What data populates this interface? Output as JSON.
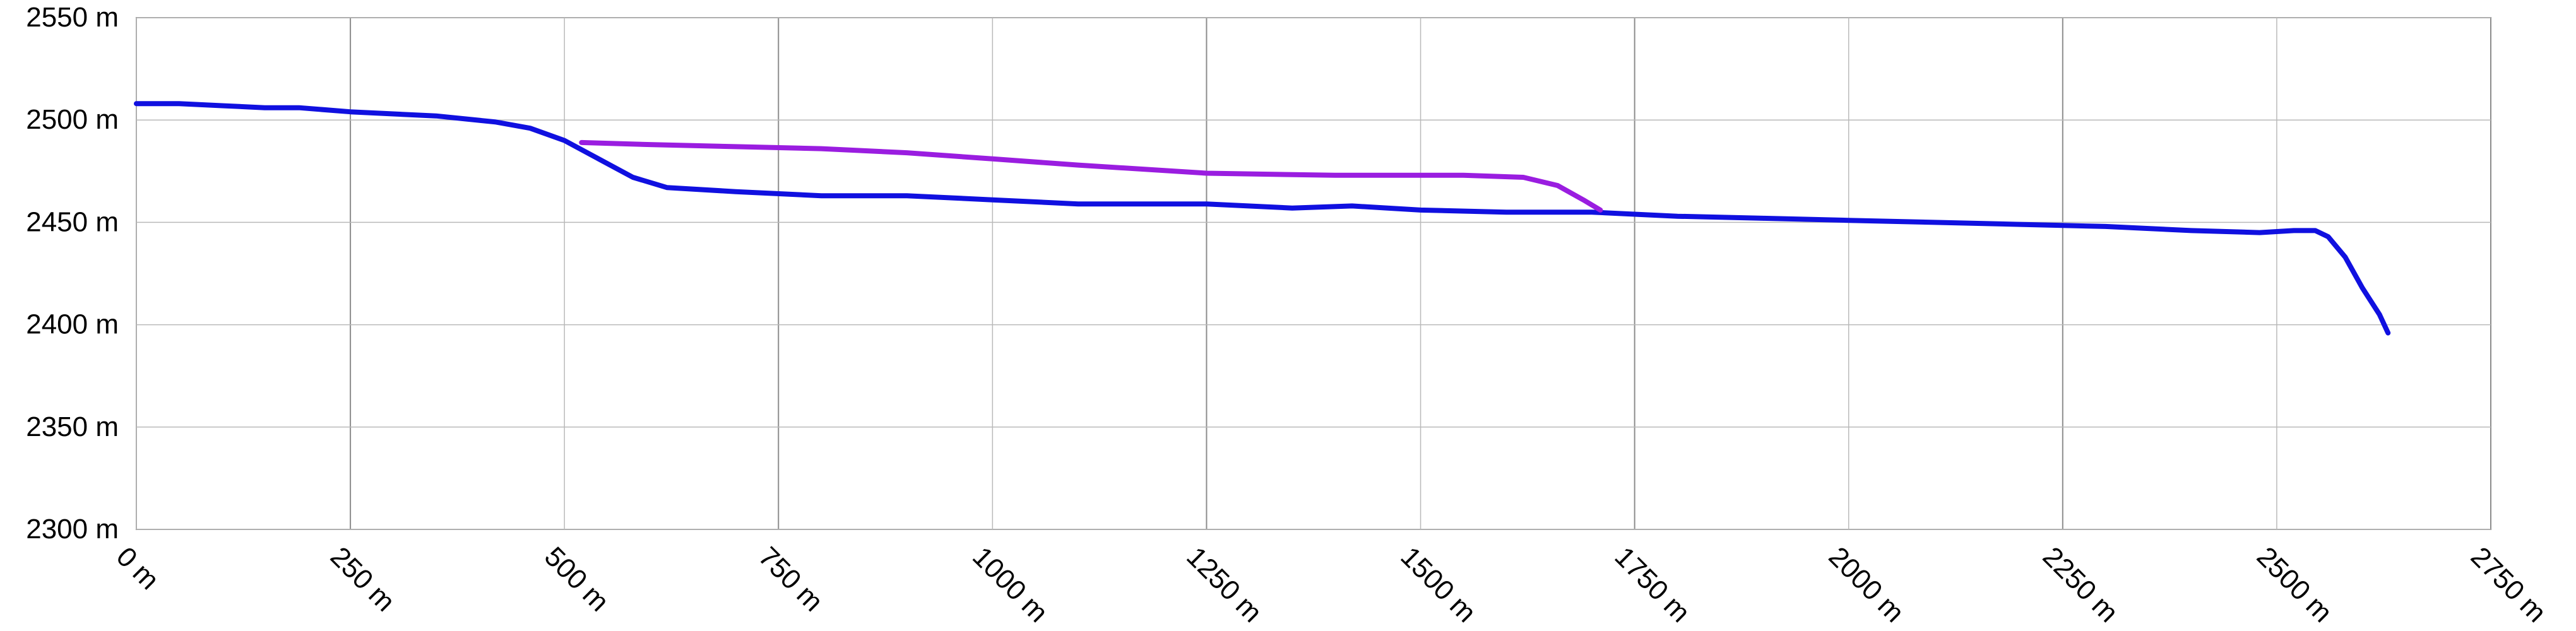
{
  "chart_data": {
    "type": "line",
    "x_unit": "m",
    "y_unit": "m",
    "xlim": [
      0,
      2750
    ],
    "ylim": [
      2300,
      2550
    ],
    "x_ticks": [
      0,
      250,
      500,
      750,
      1000,
      1250,
      1500,
      1750,
      2000,
      2250,
      2500,
      2750
    ],
    "y_ticks": [
      2300,
      2350,
      2400,
      2450,
      2500,
      2550
    ],
    "x_tick_labels": [
      "0 m",
      "250 m",
      "500 m",
      "750 m",
      "1000 m",
      "1250 m",
      "1500 m",
      "1750 m",
      "2000 m",
      "2250 m",
      "2500 m",
      "2750 m"
    ],
    "y_tick_labels": [
      "2300 m",
      "2350 m",
      "2400 m",
      "2450 m",
      "2500 m",
      "2550 m"
    ],
    "grid": true,
    "series": [
      {
        "color": "#1010e0",
        "points": [
          [
            0,
            2508
          ],
          [
            50,
            2508
          ],
          [
            100,
            2507
          ],
          [
            150,
            2506
          ],
          [
            190,
            2506
          ],
          [
            250,
            2504
          ],
          [
            300,
            2503
          ],
          [
            350,
            2502
          ],
          [
            420,
            2499
          ],
          [
            460,
            2496
          ],
          [
            500,
            2490
          ],
          [
            540,
            2481
          ],
          [
            580,
            2472
          ],
          [
            620,
            2467
          ],
          [
            700,
            2465
          ],
          [
            800,
            2463
          ],
          [
            900,
            2463
          ],
          [
            1000,
            2461
          ],
          [
            1100,
            2459
          ],
          [
            1250,
            2459
          ],
          [
            1350,
            2457
          ],
          [
            1420,
            2458
          ],
          [
            1500,
            2456
          ],
          [
            1600,
            2455
          ],
          [
            1700,
            2455
          ],
          [
            1800,
            2453
          ],
          [
            1900,
            2452
          ],
          [
            2000,
            2451
          ],
          [
            2100,
            2450
          ],
          [
            2200,
            2449
          ],
          [
            2300,
            2448
          ],
          [
            2400,
            2446
          ],
          [
            2480,
            2445
          ],
          [
            2520,
            2446
          ],
          [
            2545,
            2446
          ],
          [
            2560,
            2443
          ],
          [
            2580,
            2433
          ],
          [
            2600,
            2418
          ],
          [
            2620,
            2405
          ],
          [
            2630,
            2396
          ]
        ]
      },
      {
        "color": "#9a1de0",
        "points": [
          [
            520,
            2489
          ],
          [
            600,
            2488
          ],
          [
            700,
            2487
          ],
          [
            800,
            2486
          ],
          [
            900,
            2484
          ],
          [
            1000,
            2481
          ],
          [
            1100,
            2478
          ],
          [
            1250,
            2474
          ],
          [
            1400,
            2473
          ],
          [
            1550,
            2473
          ],
          [
            1620,
            2472
          ],
          [
            1660,
            2468
          ],
          [
            1690,
            2461
          ],
          [
            1710,
            2456
          ]
        ]
      }
    ]
  }
}
